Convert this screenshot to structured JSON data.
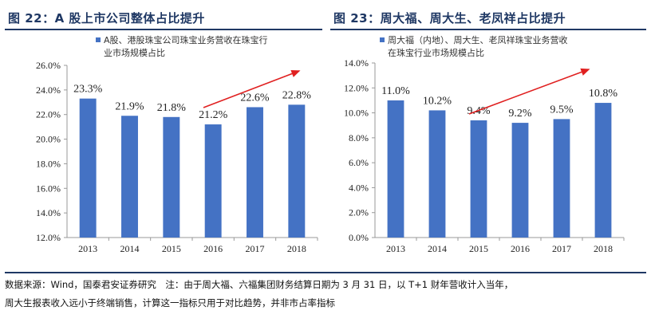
{
  "figure1": {
    "title": "图 22：A 股上市公司整体占比提升"
  },
  "figure2": {
    "title": "图 23：周大福、周大生、老凤祥占比提升"
  },
  "chart_data": [
    {
      "type": "bar",
      "categories": [
        "2013",
        "2014",
        "2015",
        "2016",
        "2017",
        "2018"
      ],
      "series": [
        {
          "name": "A股、港股珠宝公司珠宝业务营收在珠宝行业市场规模占比",
          "legend_lines": [
            "A股、港股珠宝公司珠宝业务营收在珠宝行",
            "业市场规模占比"
          ],
          "values": [
            23.3,
            21.9,
            21.8,
            21.2,
            22.6,
            22.8
          ],
          "labels": [
            "23.3%",
            "21.9%",
            "21.8%",
            "21.2%",
            "22.6%",
            "22.8%"
          ]
        }
      ],
      "ylim": [
        12.0,
        26.0
      ],
      "yticks": [
        "12.0%",
        "14.0%",
        "16.0%",
        "18.0%",
        "20.0%",
        "22.0%",
        "24.0%",
        "26.0%"
      ],
      "legend_position": "top-right",
      "grid": false,
      "bar_color": "#4472c4",
      "arrow_color": "#e02020"
    },
    {
      "type": "bar",
      "categories": [
        "2013",
        "2014",
        "2015",
        "2016",
        "2017",
        "2018"
      ],
      "series": [
        {
          "name": "周大福（内地）、周大生、老凤祥珠宝业务营收在珠宝行业市场规模占比",
          "legend_lines": [
            "周大福（内地）、周大生、老凤祥珠宝业务营收",
            "在珠宝行业市场规模占比"
          ],
          "values": [
            11.0,
            10.2,
            9.4,
            9.2,
            9.5,
            10.8
          ],
          "labels": [
            "11.0%",
            "10.2%",
            "9.4%",
            "9.2%",
            "9.5%",
            "10.8%"
          ]
        }
      ],
      "ylim": [
        0.0,
        14.0
      ],
      "yticks": [
        "0.0%",
        "2.0%",
        "4.0%",
        "6.0%",
        "8.0%",
        "10.0%",
        "12.0%",
        "14.0%"
      ],
      "legend_position": "top-right",
      "grid": false,
      "bar_color": "#4472c4",
      "arrow_color": "#e02020"
    }
  ],
  "footnote": {
    "line1": "数据来源：Wind，国泰君安证券研究　注：由于周大福、六福集团财务结算日期为 3 月 31 日，以 T+1 财年营收计入当年，",
    "line2": "周大生报表收入远小于终端销售，计算这一指标只用于对比趋势，并非市占率指标"
  }
}
